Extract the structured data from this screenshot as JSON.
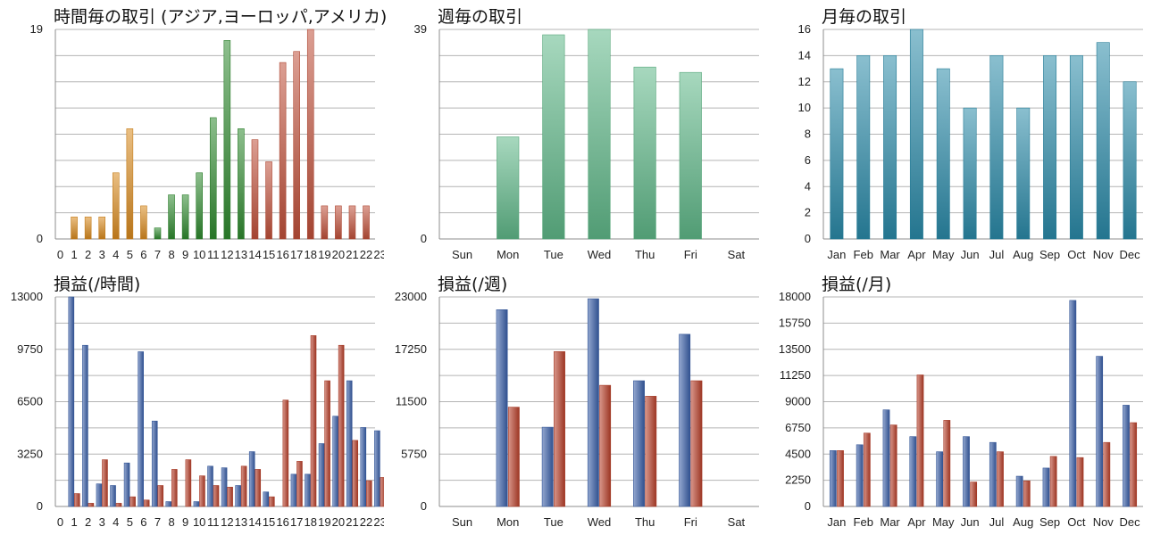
{
  "colors": {
    "grid": "#b4b4b4",
    "axis": "#8c8c8c",
    "orange": "#d98a1e",
    "green": "#2f8a2f",
    "red": "#c0503a",
    "mint": "#5fb888",
    "teal": "#2a8aa8",
    "blue": "#3a5fa8",
    "darkred": "#b8402a"
  },
  "chart_data": [
    {
      "id": "hourly-trades",
      "title": "時間毎の取引 (アジア,ヨーロッパ,アメリカ)",
      "type": "bar",
      "categories": [
        "0",
        "1",
        "2",
        "3",
        "4",
        "5",
        "6",
        "7",
        "8",
        "9",
        "10",
        "11",
        "12",
        "13",
        "14",
        "15",
        "16",
        "17",
        "18",
        "19",
        "20",
        "21",
        "22",
        "23"
      ],
      "values": [
        0,
        2,
        2,
        2,
        6,
        10,
        3,
        1,
        4,
        4,
        6,
        11,
        18,
        10,
        9,
        7,
        16,
        17,
        19,
        3,
        3,
        3,
        3,
        0
      ],
      "color_groups": [
        "orange",
        "orange",
        "orange",
        "orange",
        "orange",
        "orange",
        "orange",
        "green",
        "green",
        "green",
        "green",
        "green",
        "green",
        "green",
        "red",
        "red",
        "red",
        "red",
        "red",
        "red",
        "red",
        "red",
        "red",
        "red"
      ],
      "ylim": [
        0,
        19
      ],
      "yticks": [
        0,
        19
      ],
      "grid_lines": 8
    },
    {
      "id": "weekly-trades",
      "title": "週毎の取引",
      "type": "bar",
      "categories": [
        "Sun",
        "Mon",
        "Tue",
        "Wed",
        "Thu",
        "Fri",
        "Sat"
      ],
      "values": [
        0,
        19,
        38,
        39,
        32,
        31,
        0
      ],
      "color": "mint",
      "ylim": [
        0,
        39
      ],
      "yticks": [
        0,
        39
      ],
      "grid_lines": 8
    },
    {
      "id": "monthly-trades",
      "title": "月毎の取引",
      "type": "bar",
      "categories": [
        "Jan",
        "Feb",
        "Mar",
        "Apr",
        "May",
        "Jun",
        "Jul",
        "Aug",
        "Sep",
        "Oct",
        "Nov",
        "Dec"
      ],
      "values": [
        13,
        14,
        14,
        16,
        13,
        10,
        14,
        10,
        14,
        14,
        15,
        12
      ],
      "color": "teal",
      "ylim": [
        0,
        16
      ],
      "yticks": [
        0,
        2,
        4,
        6,
        8,
        10,
        12,
        14,
        16
      ],
      "grid_lines": 8
    },
    {
      "id": "hourly-pnl",
      "title": "損益(/時間)",
      "type": "bar",
      "categories": [
        "0",
        "1",
        "2",
        "3",
        "4",
        "5",
        "6",
        "7",
        "8",
        "9",
        "10",
        "11",
        "12",
        "13",
        "14",
        "15",
        "16",
        "17",
        "18",
        "19",
        "20",
        "21",
        "22",
        "23"
      ],
      "series": [
        {
          "color": "blue",
          "values": [
            0,
            13000,
            10000,
            1400,
            1300,
            2700,
            9600,
            5300,
            300,
            0,
            300,
            2500,
            2400,
            1300,
            3400,
            900,
            0,
            2000,
            2000,
            3900,
            5600,
            7800,
            4900,
            4700
          ]
        },
        {
          "color": "darkred",
          "values": [
            0,
            800,
            200,
            2900,
            200,
            600,
            400,
            1300,
            2300,
            2900,
            1900,
            1300,
            1200,
            2500,
            2300,
            600,
            6600,
            2800,
            10600,
            7800,
            10000,
            4100,
            1600,
            1800
          ]
        }
      ],
      "ylim": [
        0,
        13000
      ],
      "yticks": [
        0,
        3250,
        6500,
        9750,
        13000
      ],
      "grid_lines": 8
    },
    {
      "id": "weekly-pnl",
      "title": "損益(/週)",
      "type": "bar",
      "categories": [
        "Sun",
        "Mon",
        "Tue",
        "Wed",
        "Thu",
        "Fri",
        "Sat"
      ],
      "series": [
        {
          "color": "blue",
          "values": [
            0,
            21600,
            8700,
            22800,
            13800,
            18900,
            0
          ]
        },
        {
          "color": "darkred",
          "values": [
            0,
            10900,
            17000,
            13300,
            12100,
            13800,
            0
          ]
        }
      ],
      "ylim": [
        0,
        23000
      ],
      "yticks": [
        0,
        5750,
        11500,
        17250,
        23000
      ],
      "grid_lines": 8
    },
    {
      "id": "monthly-pnl",
      "title": "損益(/月)",
      "type": "bar",
      "categories": [
        "Jan",
        "Feb",
        "Mar",
        "Apr",
        "May",
        "Jun",
        "Jul",
        "Aug",
        "Sep",
        "Oct",
        "Nov",
        "Dec"
      ],
      "series": [
        {
          "color": "blue",
          "values": [
            4800,
            5300,
            8300,
            6000,
            4700,
            6000,
            5500,
            2600,
            3300,
            17700,
            12900,
            8700
          ]
        },
        {
          "color": "darkred",
          "values": [
            4800,
            6300,
            7000,
            11300,
            7400,
            2100,
            4700,
            2200,
            4300,
            4200,
            5500,
            7200
          ]
        }
      ],
      "ylim": [
        0,
        18000
      ],
      "yticks": [
        0,
        2250,
        4500,
        6750,
        9000,
        11250,
        13500,
        15750,
        18000
      ],
      "grid_lines": 8
    }
  ]
}
